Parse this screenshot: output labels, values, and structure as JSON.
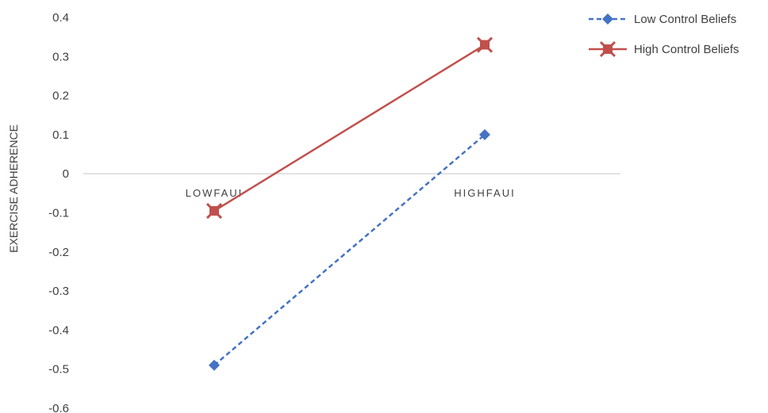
{
  "chart_data": {
    "type": "line",
    "title": "",
    "xlabel": "",
    "ylabel": "EXERCISE ADHERENCE",
    "categories": [
      "LOWFAUI",
      "HIGHFAUI"
    ],
    "ylim": [
      -0.6,
      0.4
    ],
    "yticks": [
      "0.4",
      "0.3",
      "0.2",
      "0.1",
      "0",
      "-0.1",
      "-0.2",
      "-0.3",
      "-0.4",
      "-0.5",
      "-0.6"
    ],
    "grid": false,
    "legend_position": "top-right",
    "series": [
      {
        "name": "Low Control Beliefs",
        "values": [
          -0.49,
          0.1
        ],
        "color": "#4472C4",
        "dash": "dashed",
        "marker": "diamond"
      },
      {
        "name": "High Control Beliefs",
        "values": [
          -0.095,
          0.33
        ],
        "color": "#C0504D",
        "dash": "solid",
        "marker": "square-x"
      }
    ]
  }
}
